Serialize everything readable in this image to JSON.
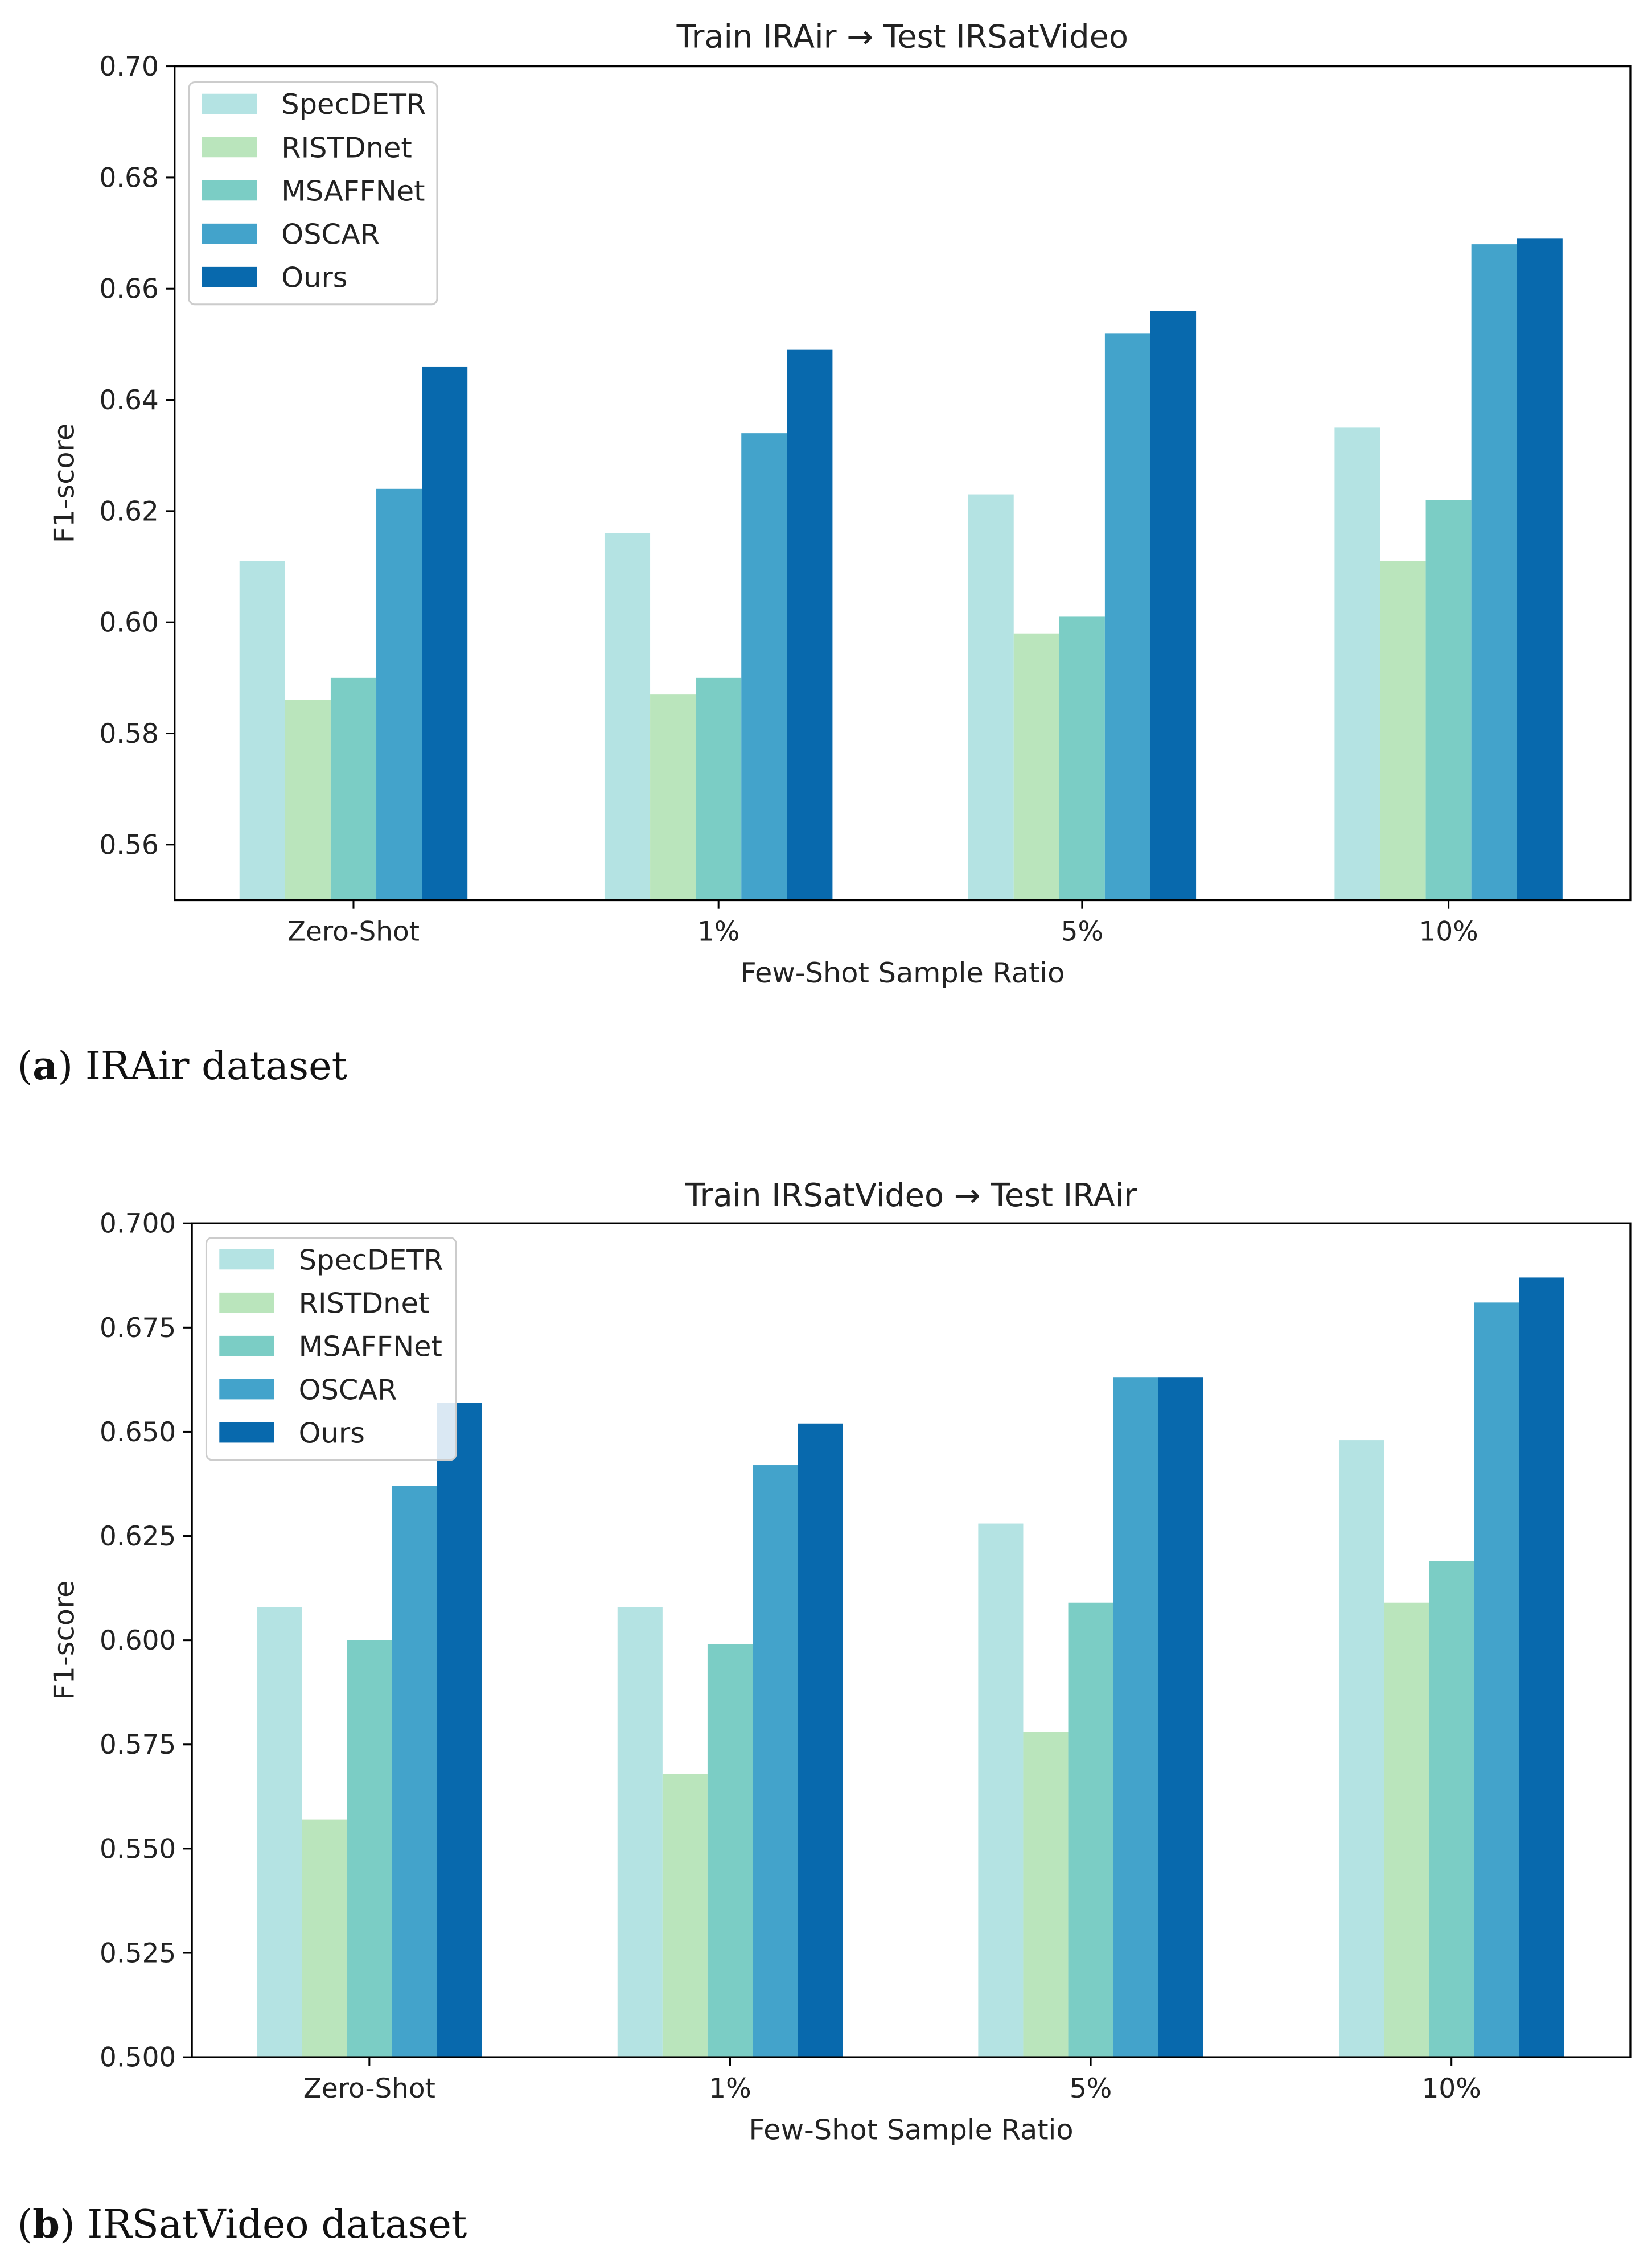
{
  "chart_data": [
    {
      "type": "bar",
      "title": "Train IRAir → Test IRSatVideo",
      "xlabel": "Few-Shot Sample Ratio",
      "ylabel": "F1-score",
      "ylim": [
        0.55,
        0.7
      ],
      "yticks": [
        "0.56",
        "0.58",
        "0.60",
        "0.62",
        "0.64",
        "0.66",
        "0.68",
        "0.70"
      ],
      "categories": [
        "Zero-Shot",
        "1%",
        "5%",
        "10%"
      ],
      "legend_position": "top-left",
      "grid": false,
      "caption_letter": "a",
      "caption_text": "IRAir dataset",
      "series": [
        {
          "name": "SpecDETR",
          "color": "#b4e3e3",
          "values": [
            0.611,
            0.616,
            0.623,
            0.635
          ]
        },
        {
          "name": "RISTDnet",
          "color": "#bae5bc",
          "values": [
            0.586,
            0.587,
            0.598,
            0.611
          ]
        },
        {
          "name": "MSAFFNet",
          "color": "#7bcdc5",
          "values": [
            0.59,
            0.59,
            0.601,
            0.622
          ]
        },
        {
          "name": "OSCAR",
          "color": "#43a3cb",
          "values": [
            0.624,
            0.634,
            0.652,
            0.668
          ]
        },
        {
          "name": "Ours",
          "color": "#0869ad",
          "values": [
            0.646,
            0.649,
            0.656,
            0.669
          ]
        }
      ]
    },
    {
      "type": "bar",
      "title": "Train IRSatVideo → Test IRAir",
      "xlabel": "Few-Shot Sample Ratio",
      "ylabel": "F1-score",
      "ylim": [
        0.5,
        0.7
      ],
      "yticks": [
        "0.500",
        "0.525",
        "0.550",
        "0.575",
        "0.600",
        "0.625",
        "0.650",
        "0.675",
        "0.700"
      ],
      "categories": [
        "Zero-Shot",
        "1%",
        "5%",
        "10%"
      ],
      "legend_position": "top-left",
      "grid": false,
      "caption_letter": "b",
      "caption_text": "IRSatVideo dataset",
      "series": [
        {
          "name": "SpecDETR",
          "color": "#b4e3e3",
          "values": [
            0.608,
            0.608,
            0.628,
            0.648
          ]
        },
        {
          "name": "RISTDnet",
          "color": "#bae5bc",
          "values": [
            0.557,
            0.568,
            0.578,
            0.609
          ]
        },
        {
          "name": "MSAFFNet",
          "color": "#7bcdc5",
          "values": [
            0.6,
            0.599,
            0.609,
            0.619
          ]
        },
        {
          "name": "OSCAR",
          "color": "#43a3cb",
          "values": [
            0.637,
            0.642,
            0.663,
            0.681
          ]
        },
        {
          "name": "Ours",
          "color": "#0869ad",
          "values": [
            0.657,
            0.652,
            0.663,
            0.687
          ]
        }
      ]
    }
  ]
}
